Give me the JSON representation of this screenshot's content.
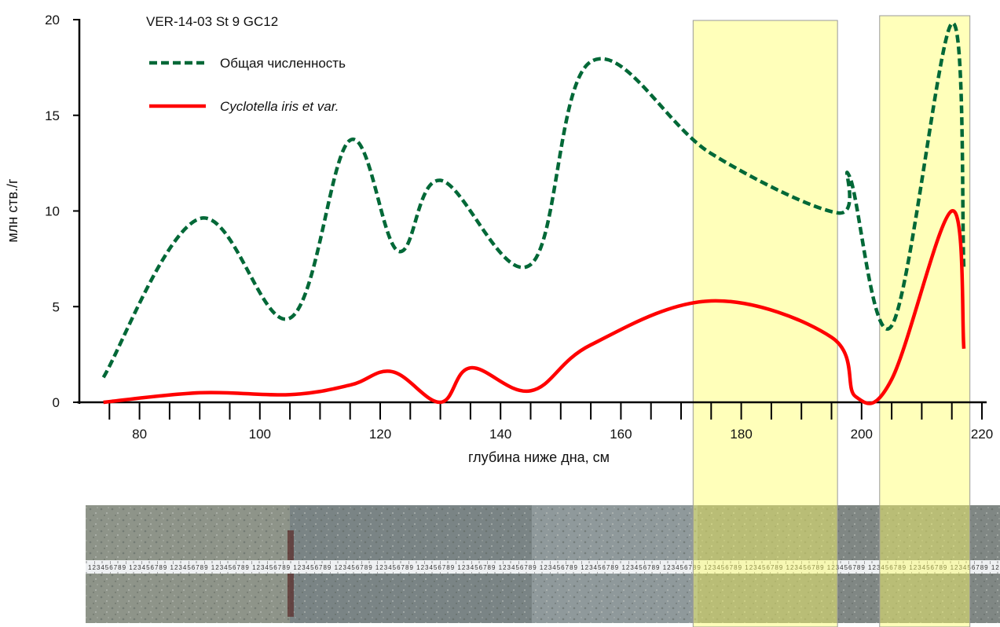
{
  "chart_data": {
    "type": "line",
    "title": "VER-14-03 St 9 GC12",
    "xlabel": "глубина ниже дна, см",
    "ylabel": "млн ств./г",
    "xlim": [
      70,
      220
    ],
    "ylim": [
      0,
      20
    ],
    "x_ticks": [
      80,
      100,
      120,
      140,
      160,
      180,
      200,
      220
    ],
    "y_ticks": [
      0,
      5,
      10,
      15,
      20
    ],
    "grid": false,
    "legend_position": "top-left",
    "highlight_ranges": [
      [
        172,
        196
      ],
      [
        203,
        218
      ]
    ],
    "series": [
      {
        "name": "Общая численность",
        "style": "dashed",
        "color": "#006837",
        "x": [
          74,
          90,
          105,
          115,
          123,
          130,
          145,
          155,
          175,
          196,
          198,
          205,
          215,
          217
        ],
        "y": [
          1.3,
          9.6,
          4.4,
          13.7,
          7.9,
          11.6,
          7.2,
          17.8,
          13.0,
          9.9,
          11.8,
          4.0,
          19.8,
          7.0
        ]
      },
      {
        "name": "Cyclotella iris et var.",
        "style": "solid",
        "color": "#ff0000",
        "italic": true,
        "x": [
          74,
          90,
          105,
          115,
          122,
          130,
          135,
          145,
          155,
          175,
          195,
          199,
          205,
          215,
          217
        ],
        "y": [
          0.0,
          0.5,
          0.4,
          0.9,
          1.6,
          0.0,
          1.8,
          0.6,
          3.0,
          5.3,
          3.4,
          0.3,
          1.2,
          10.0,
          2.8
        ]
      }
    ]
  },
  "core_photo": {
    "description_label": "",
    "tape_digits": "1 2 3 4 5 6 7 8 9"
  }
}
